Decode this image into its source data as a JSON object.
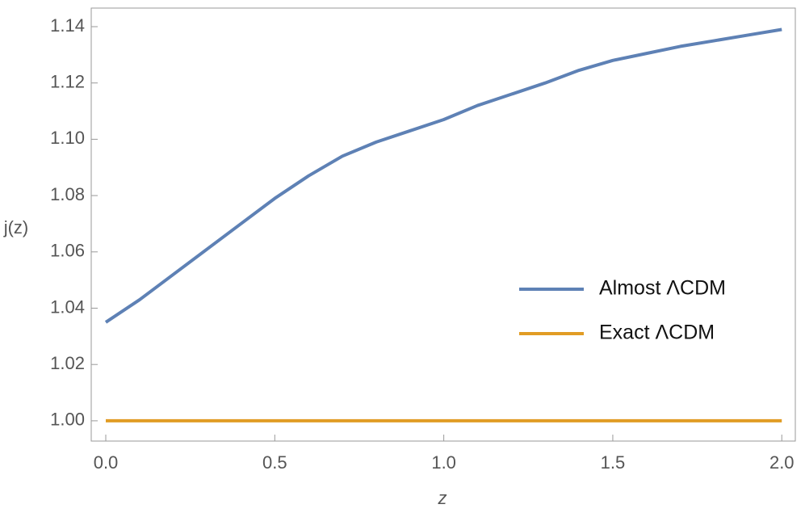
{
  "chart_data": {
    "type": "line",
    "xlabel": "z",
    "ylabel": "j(z)",
    "xlim": [
      -0.043,
      2.04
    ],
    "ylim": [
      0.9928,
      1.1466
    ],
    "xticks": [
      {
        "value": 0,
        "label": "0.0"
      },
      0.5,
      {
        "value": 1,
        "label": "1.0"
      },
      1.5,
      {
        "value": 2,
        "label": "2.0"
      }
    ],
    "yticks": [
      {
        "value": 1.0,
        "label": "1.00"
      },
      {
        "value": 1.02,
        "label": "1.02"
      },
      {
        "value": 1.04,
        "label": "1.04"
      },
      {
        "value": 1.06,
        "label": "1.06"
      },
      {
        "value": 1.08,
        "label": "1.08"
      },
      {
        "value": 1.1,
        "label": "1.10"
      },
      {
        "value": 1.12,
        "label": "1.12"
      },
      {
        "value": 1.14,
        "label": "1.14"
      }
    ],
    "legend": "right",
    "series": [
      {
        "name": "Almost ΛCDM",
        "color": "#5e81b5",
        "x": [
          0,
          0.1,
          0.2,
          0.3,
          0.4,
          0.5,
          0.6,
          0.7,
          0.8,
          0.9,
          1.0,
          1.1,
          1.2,
          1.3,
          1.4,
          1.5,
          1.6,
          1.7,
          1.8,
          1.9,
          2.0
        ],
        "values": [
          1.035,
          1.043,
          1.052,
          1.061,
          1.07,
          1.079,
          1.087,
          1.094,
          1.099,
          1.103,
          1.107,
          1.112,
          1.116,
          1.12,
          1.1245,
          1.128,
          1.1305,
          1.133,
          1.135,
          1.137,
          1.139
        ]
      },
      {
        "name": "Exact ΛCDM",
        "color": "#e19c24",
        "x": [
          0,
          2.0
        ],
        "values": [
          1.0,
          1.0
        ]
      }
    ]
  }
}
